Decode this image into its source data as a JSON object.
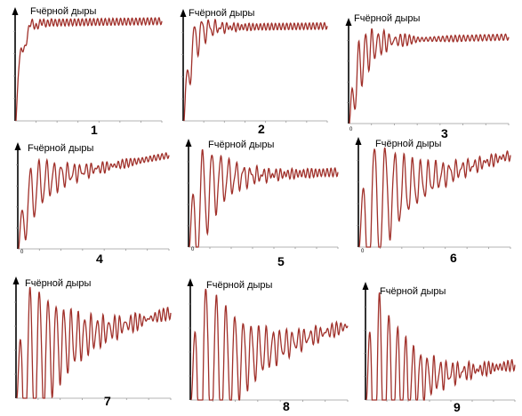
{
  "y_axis_label": "Fчёрной дыры",
  "origin_label": "0",
  "colors": {
    "curve": "#a0302a",
    "axis": "#000000",
    "baseline": "#9a9a9a"
  },
  "chart_data": [
    {
      "type": "line",
      "panel_label": "1",
      "ylabel": "Fчёрной дыры",
      "xlabel": "",
      "grid": false,
      "curve_params": {
        "asymptote": 1.0,
        "rise_rate": 5.0,
        "oscillation_amplitude": 0.35,
        "oscillation_frequency": 40,
        "oscillation_damping": 18,
        "drift": 0.02
      }
    },
    {
      "type": "line",
      "panel_label": "2",
      "ylabel": "Fчёрной дыры",
      "xlabel": "",
      "grid": false,
      "curve_params": {
        "asymptote": 1.0,
        "rise_rate": 4.0,
        "oscillation_amplitude": 0.5,
        "oscillation_frequency": 60,
        "oscillation_damping": 10,
        "drift": 0.02
      }
    },
    {
      "type": "line",
      "panel_label": "3",
      "ylabel": "Fчёрной дыры",
      "xlabel": "",
      "grid": false,
      "curve_params": {
        "asymptote": 0.95,
        "rise_rate": 3.0,
        "oscillation_amplitude": 0.6,
        "oscillation_frequency": 75,
        "oscillation_damping": 8,
        "drift": 0.05
      }
    },
    {
      "type": "line",
      "panel_label": "4",
      "ylabel": "Fчёрной дыры",
      "xlabel": "",
      "grid": false,
      "curve_params": {
        "asymptote": 0.7,
        "rise_rate": 3.0,
        "oscillation_amplitude": 0.5,
        "oscillation_frequency": 55,
        "oscillation_damping": 5,
        "drift": 0.3
      }
    },
    {
      "type": "line",
      "panel_label": "5",
      "ylabel": "Fчёрной дыры",
      "xlabel": "",
      "grid": false,
      "curve_params": {
        "asymptote": 0.6,
        "rise_rate": 2.2,
        "oscillation_amplitude": 0.75,
        "oscillation_frequency": 48,
        "oscillation_damping": 6,
        "drift": 0.05
      }
    },
    {
      "type": "line",
      "panel_label": "6",
      "ylabel": "Fчёрной дыры",
      "xlabel": "",
      "grid": false,
      "curve_params": {
        "asymptote": 0.45,
        "rise_rate": 2.0,
        "oscillation_amplitude": 0.9,
        "oscillation_frequency": 42,
        "oscillation_damping": 4,
        "drift": 0.4
      }
    },
    {
      "type": "line",
      "panel_label": "7",
      "ylabel": "Fчёрной дыры",
      "xlabel": "",
      "grid": false,
      "curve_params": {
        "asymptote": 0.38,
        "rise_rate": 2.0,
        "oscillation_amplitude": 1.0,
        "oscillation_frequency": 50,
        "oscillation_damping": 4,
        "drift": 0.35
      }
    },
    {
      "type": "line",
      "panel_label": "8",
      "ylabel": "Fчёрной дыры",
      "xlabel": "",
      "grid": false,
      "curve_params": {
        "asymptote": 0.25,
        "rise_rate": 2.0,
        "oscillation_amplitude": 1.2,
        "oscillation_frequency": 45,
        "oscillation_damping": 4,
        "drift": 0.4
      }
    },
    {
      "type": "line",
      "panel_label": "9",
      "ylabel": "Fчёрной дыры",
      "xlabel": "",
      "grid": false,
      "curve_params": {
        "asymptote": 0.12,
        "rise_rate": 2.0,
        "oscillation_amplitude": 1.2,
        "oscillation_frequency": 48,
        "oscillation_damping": 5,
        "drift": 0.15
      }
    }
  ]
}
